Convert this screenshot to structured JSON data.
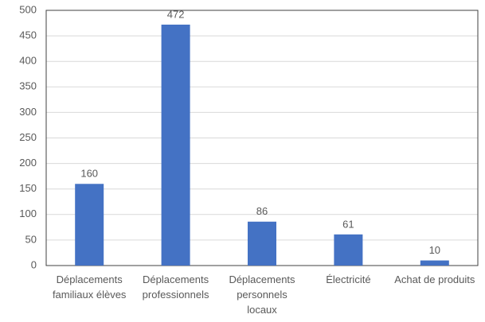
{
  "chart_data": {
    "type": "bar",
    "categories": [
      "Déplacements familiaux élèves",
      "Déplacements professionnels",
      "Déplacements personnels locaux",
      "Électricité",
      "Achat de produits"
    ],
    "values": [
      160,
      472,
      86,
      61,
      10
    ],
    "color": "#4472c4",
    "ylim": [
      0,
      500
    ],
    "yticks": [
      0,
      50,
      100,
      150,
      200,
      250,
      300,
      350,
      400,
      450,
      500
    ],
    "grid": true
  }
}
